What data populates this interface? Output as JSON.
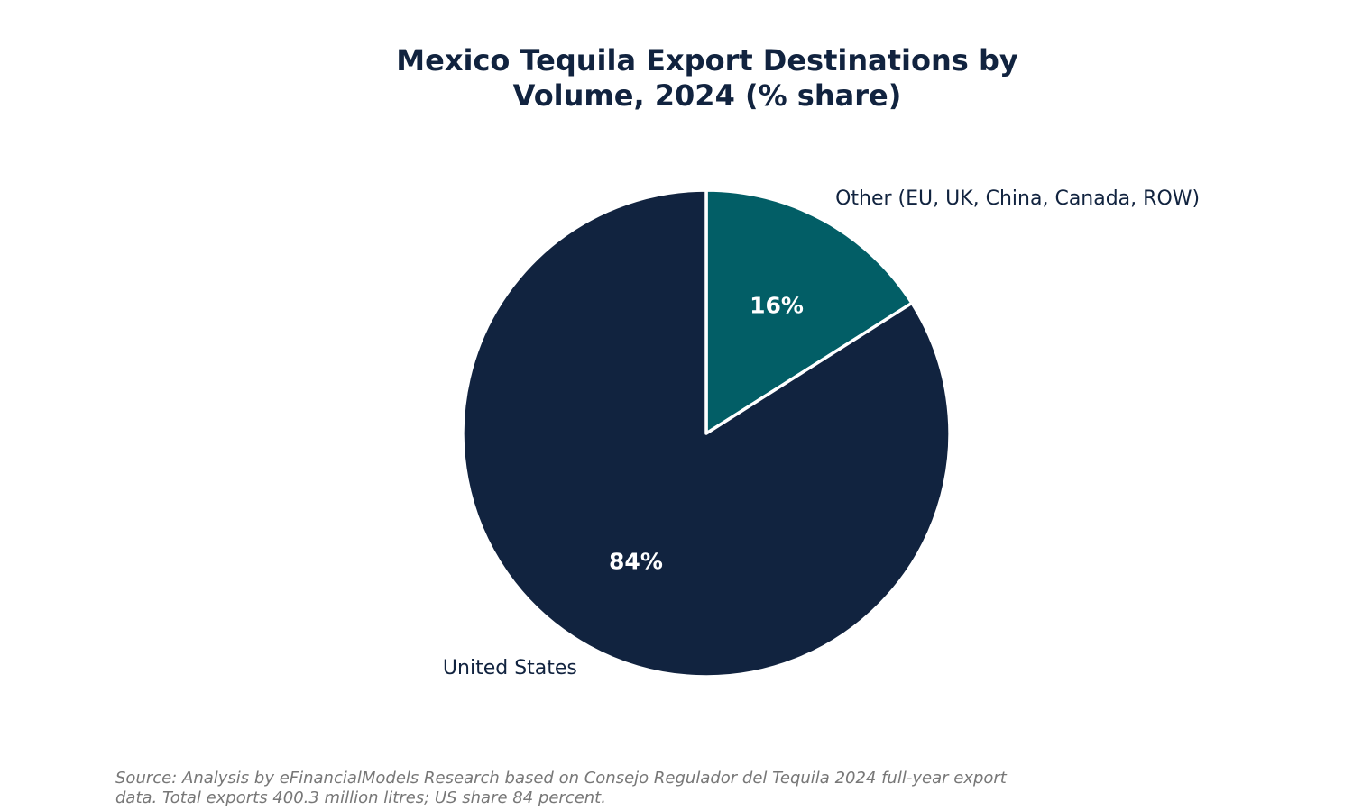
{
  "chart_data": {
    "type": "pie",
    "title_lines": [
      "Mexico Tequila Export Destinations by",
      "Volume, 2024 (% share)"
    ],
    "categories": [
      "Other (EU, UK, China, Canada, ROW)",
      "United States"
    ],
    "values": [
      16,
      84
    ],
    "value_labels": [
      "16%",
      "84%"
    ],
    "colors": [
      "#025e66",
      "#11233f"
    ],
    "edge_color": "#ffffff",
    "start": "12 o'clock, clockwise",
    "legend": "none"
  },
  "source_lines": [
    "Source: Analysis by eFinancialModels Research based on Consejo Regulador del Tequila 2024 full-year export",
    "data. Total exports 400.3 million litres; US share 84 percent."
  ]
}
